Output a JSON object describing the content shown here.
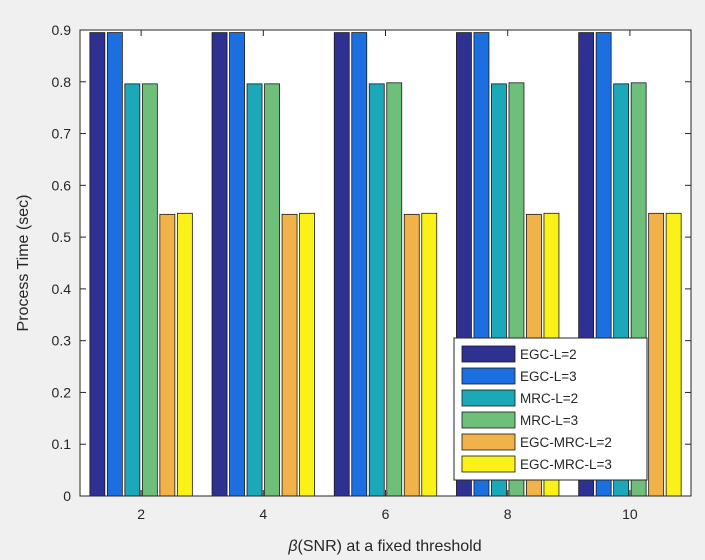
{
  "chart_data": {
    "type": "bar",
    "categories": [
      "2",
      "4",
      "6",
      "8",
      "10"
    ],
    "xlabel_symbol": "β",
    "xlabel_rest": "(SNR) at a fixed threshold",
    "ylabel": "Process Time (sec)",
    "ylim": [
      0,
      0.9
    ],
    "yticks": [
      0,
      0.1,
      0.2,
      0.3,
      0.4,
      0.5,
      0.6,
      0.7,
      0.8,
      0.9
    ],
    "yticklabels": [
      "0",
      "0.1",
      "0.2",
      "0.3",
      "0.4",
      "0.5",
      "0.6",
      "0.7",
      "0.8",
      "0.9"
    ],
    "grid": false,
    "legend_position": "bottom-right",
    "series": [
      {
        "name": "EGC-L=2",
        "color": "#2e3192",
        "values": [
          0.895,
          0.895,
          0.895,
          0.895,
          0.895
        ]
      },
      {
        "name": "EGC-L=3",
        "color": "#1c6fe0",
        "values": [
          0.895,
          0.895,
          0.895,
          0.895,
          0.895
        ]
      },
      {
        "name": "MRC-L=2",
        "color": "#1ba8b8",
        "values": [
          0.796,
          0.796,
          0.796,
          0.796,
          0.796
        ]
      },
      {
        "name": "MRC-L=3",
        "color": "#6dbf7a",
        "values": [
          0.796,
          0.796,
          0.798,
          0.798,
          0.798
        ]
      },
      {
        "name": "EGC-MRC-L=2",
        "color": "#f2b24a",
        "values": [
          0.544,
          0.544,
          0.544,
          0.544,
          0.546
        ]
      },
      {
        "name": "EGC-MRC-L=3",
        "color": "#f9f117",
        "values": [
          0.546,
          0.546,
          0.546,
          0.546,
          0.546
        ]
      }
    ]
  }
}
